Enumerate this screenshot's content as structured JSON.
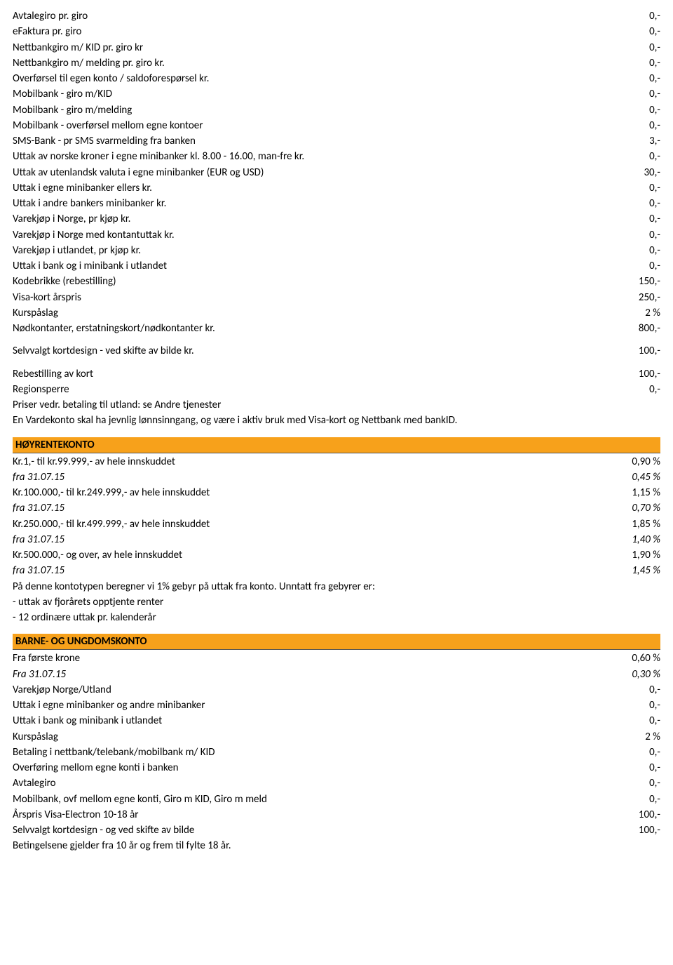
{
  "colors": {
    "header_bg": "#f7a11b",
    "text": "#000000",
    "rule": "#555555"
  },
  "sections": {
    "top": {
      "rows": [
        {
          "label": "Avtalegiro pr. giro",
          "value": "0,-"
        },
        {
          "label": "eFaktura pr. giro",
          "value": "0,-"
        },
        {
          "label": "Nettbankgiro m/ KID pr. giro kr",
          "value": "0,-"
        },
        {
          "label": "Nettbankgiro m/ melding pr. giro kr.",
          "value": "0,-"
        },
        {
          "label": "Overførsel til egen konto / saldoforespørsel kr.",
          "value": "0,-"
        },
        {
          "label": "Mobilbank - giro m/KID",
          "value": "0,-"
        },
        {
          "label": "Mobilbank - giro m/melding",
          "value": "0,-"
        },
        {
          "label": "Mobilbank - overførsel mellom egne kontoer",
          "value": "0,-"
        },
        {
          "label": "SMS-Bank - pr SMS svarmelding fra banken",
          "value": "3,-"
        },
        {
          "label": "Uttak av norske kroner i egne minibanker kl. 8.00 - 16.00, man-fre kr.",
          "value": "0,-"
        },
        {
          "label": "Uttak av utenlandsk valuta i egne minibanker (EUR og USD)",
          "value": "30,-"
        },
        {
          "label": "Uttak i egne minibanker ellers kr.",
          "value": "0,-"
        },
        {
          "label": "Uttak i andre bankers minibanker kr.",
          "value": "0,-"
        },
        {
          "label": "Varekjøp i Norge, pr kjøp kr.",
          "value": "0,-"
        },
        {
          "label": "Varekjøp i Norge med kontantuttak kr.",
          "value": "0,-"
        },
        {
          "label": "Varekjøp i utlandet, pr kjøp kr.",
          "value": "0,-"
        },
        {
          "label": "Uttak i bank og i minibank i utlandet",
          "value": "0,-"
        },
        {
          "label": "Kodebrikke (rebestilling)",
          "value": "150,-"
        },
        {
          "label": "Visa-kort  årspris",
          "value": "250,-"
        },
        {
          "label": "Kurspåslag",
          "value": "2 %"
        },
        {
          "label": "Nødkontanter, erstatningskort/nødkontanter kr.",
          "value": "800,-"
        }
      ],
      "extra1": {
        "label": "Selvvalgt kortdesign - ved skifte av bilde kr.",
        "value": "100,-"
      },
      "extra2": [
        {
          "label": "Rebestilling av kort",
          "value": "100,-"
        },
        {
          "label": "Regionsperre",
          "value": "0,-"
        }
      ],
      "notes": [
        "Priser vedr. betaling til utland: se Andre tjenester",
        "En Vardekonto skal ha jevnlig lønnsinngang, og være i aktiv bruk med Visa-kort og Nettbank med bankID."
      ]
    },
    "hoyrente": {
      "title": "HØYRENTEKONTO",
      "rows": [
        {
          "label": "Kr.1,- til kr.99.999,- av hele innskuddet",
          "value": "0,90 %"
        },
        {
          "label": "fra 31.07.15",
          "value": "0,45 %",
          "italic": true
        },
        {
          "label": "Kr.100.000,- til kr.249.999,- av hele innskuddet",
          "value": "1,15 %"
        },
        {
          "label": "fra 31.07.15",
          "value": "0,70 %",
          "italic": true
        },
        {
          "label": "Kr.250.000,- til kr.499.999,- av hele innskuddet",
          "value": "1,85 %"
        },
        {
          "label": "fra 31.07.15",
          "value": "1,40 %",
          "italic": true
        },
        {
          "label": "Kr.500.000,- og over, av hele innskuddet",
          "value": "1,90 %"
        },
        {
          "label": "fra 31.07.15",
          "value": "1,45 %",
          "italic": true
        }
      ],
      "notes": [
        "På denne kontotypen beregner vi 1% gebyr på uttak fra konto. Unntatt fra gebyrer er:",
        "- uttak av fjorårets opptjente renter",
        "- 12 ordinære uttak pr. kalenderår"
      ]
    },
    "barne": {
      "title": "BARNE- OG UNGDOMSKONTO",
      "rows": [
        {
          "label": "Fra første krone",
          "value": "0,60 %"
        },
        {
          "label": "Fra 31.07.15",
          "value": "0,30 %",
          "italic": true
        },
        {
          "label": "Varekjøp Norge/Utland",
          "value": "0,-"
        },
        {
          "label": "Uttak i egne minibanker og andre minibanker",
          "value": "0,-"
        },
        {
          "label": "Uttak i bank og minibank i utlandet",
          "value": "0,-"
        },
        {
          "label": "Kurspåslag",
          "value": "2 %"
        },
        {
          "label": "Betaling i nettbank/telebank/mobilbank m/ KID",
          "value": "0,-"
        },
        {
          "label": "Overføring mellom egne konti i banken",
          "value": "0,-"
        },
        {
          "label": "Avtalegiro",
          "value": "0,-"
        },
        {
          "label": "Mobilbank, ovf mellom egne konti, Giro m KID, Giro m meld",
          "value": "0,-"
        },
        {
          "label": "Årspris Visa-Electron 10-18 år",
          "value": "100,-"
        },
        {
          "label": "Selvvalgt kortdesign - og ved skifte av bilde",
          "value": "100,-"
        }
      ],
      "notes": [
        "Betingelsene gjelder fra 10 år og frem til fylte 18 år."
      ]
    }
  }
}
